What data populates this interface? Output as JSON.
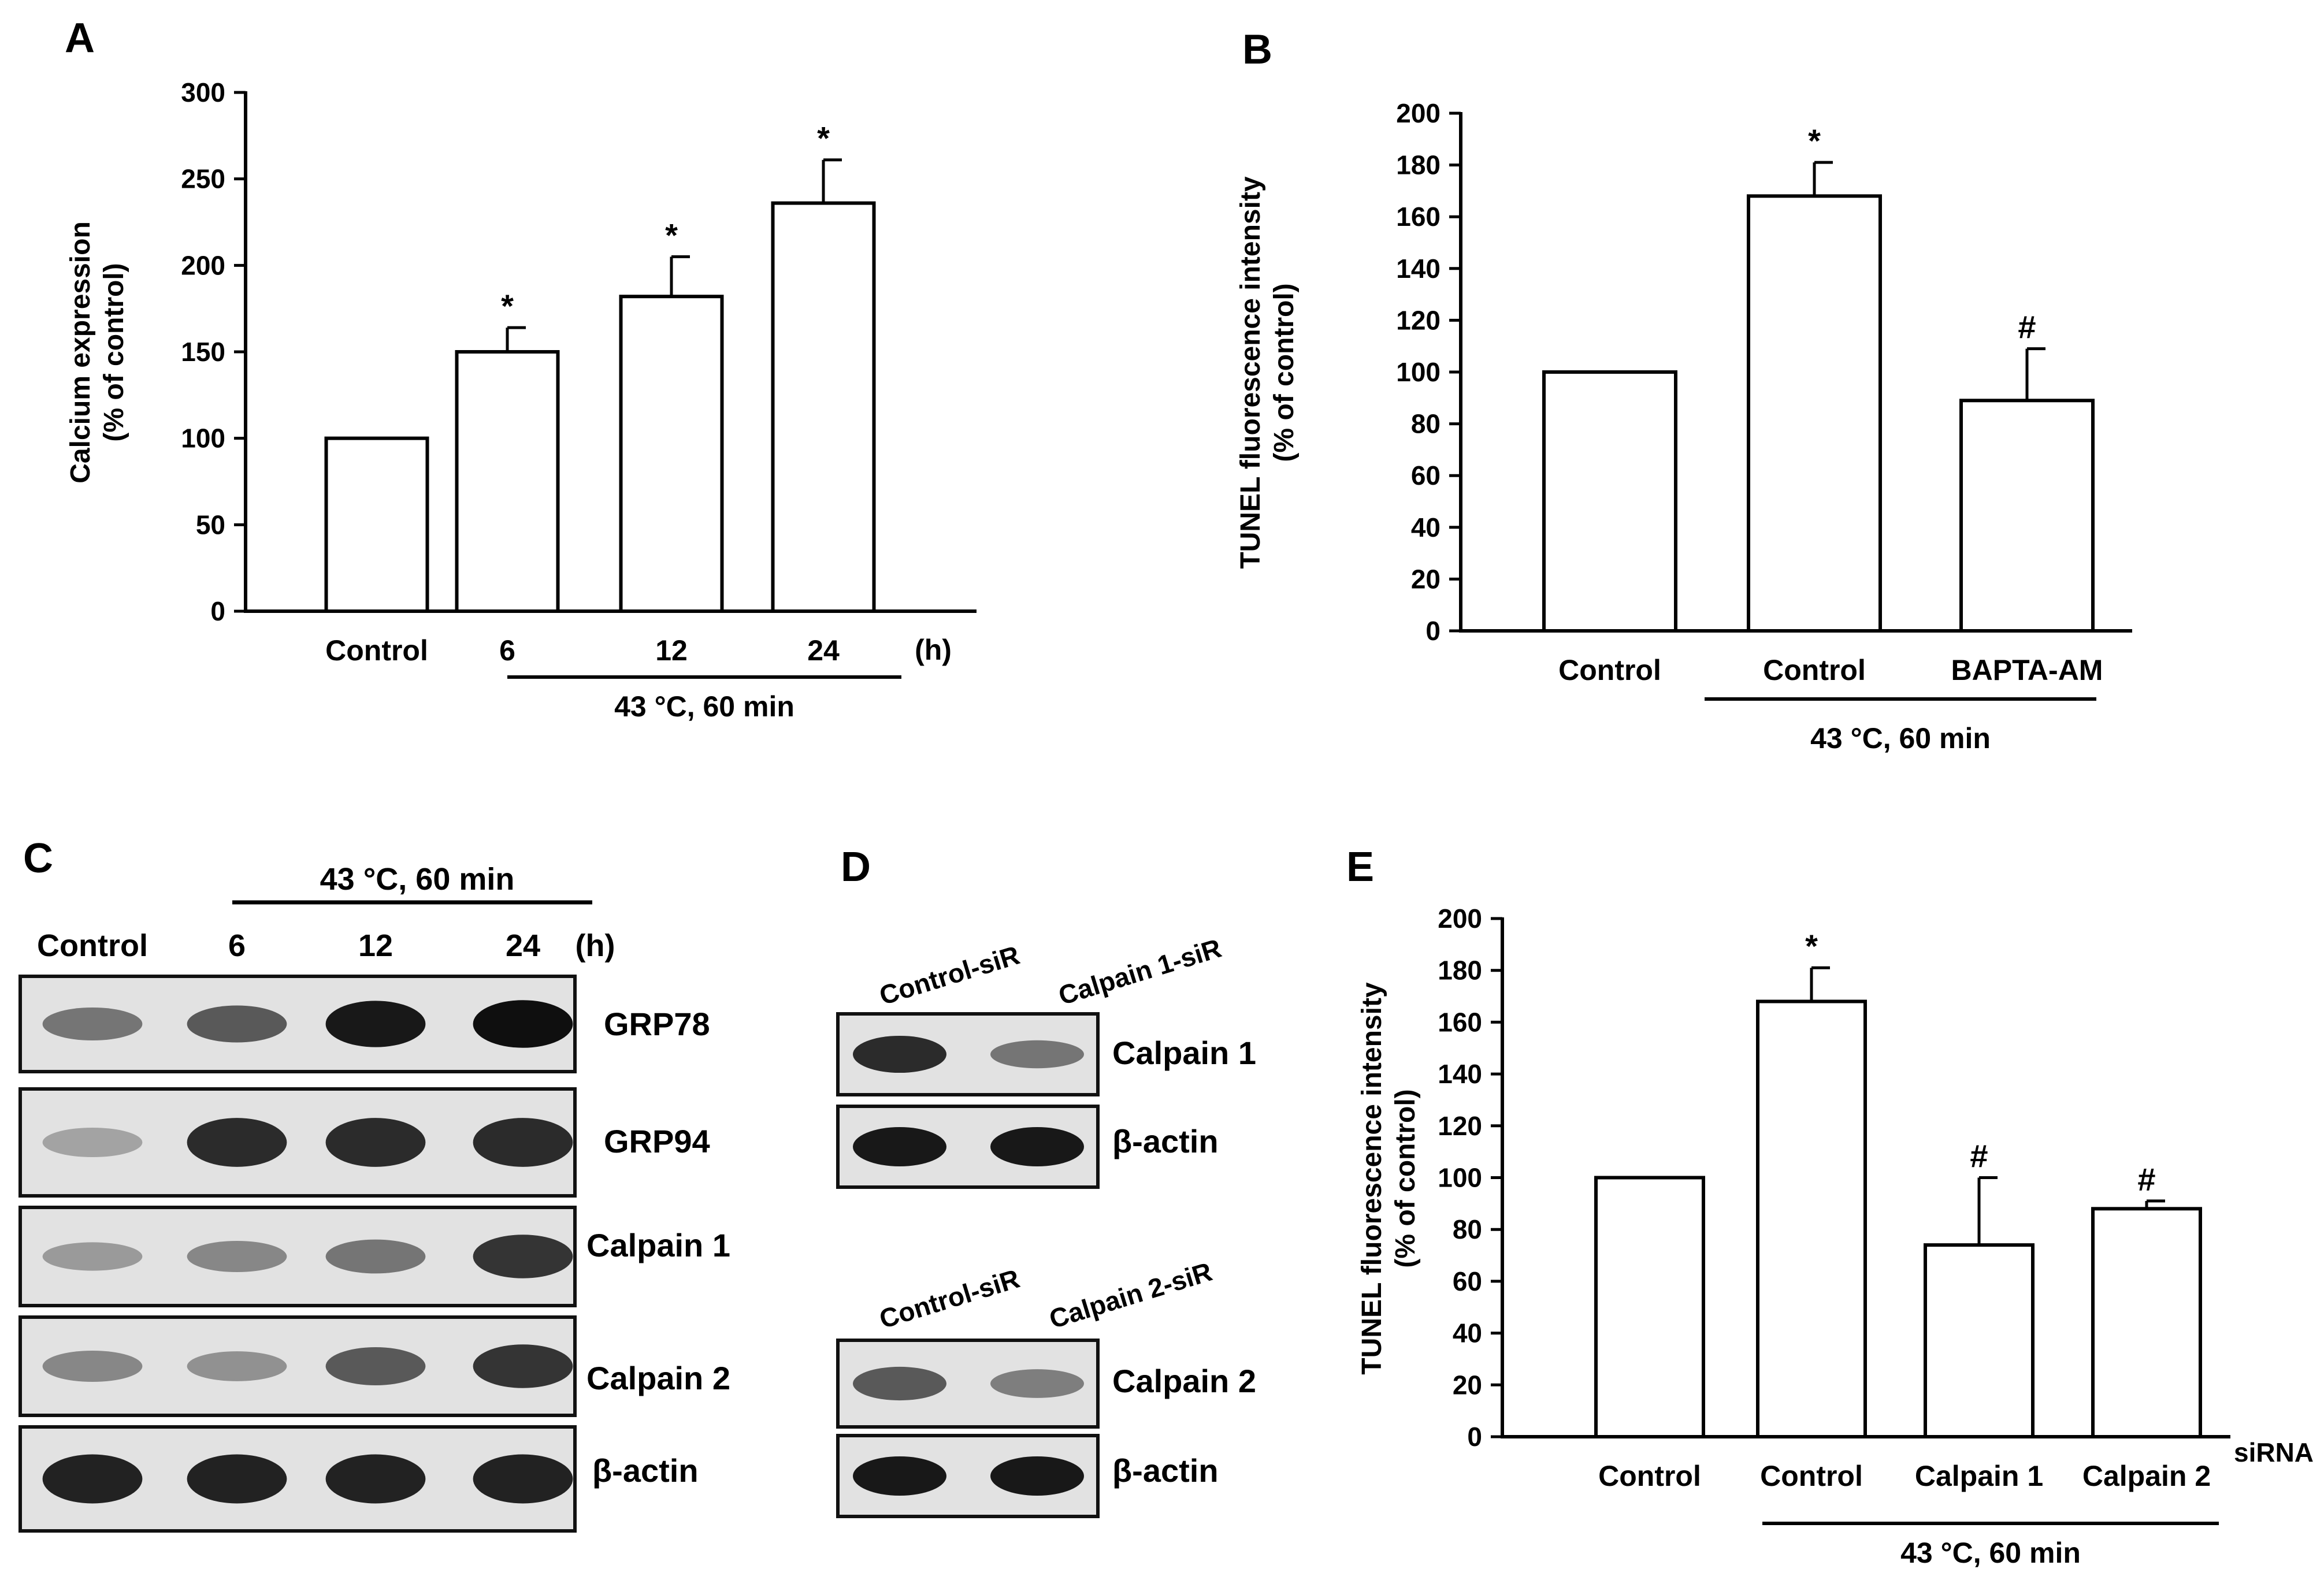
{
  "panel_labels": [
    "A",
    "B",
    "C",
    "D",
    "E"
  ],
  "chart_data": [
    {
      "panel": "A",
      "type": "bar",
      "categories": [
        "Control",
        "6",
        "12",
        "24"
      ],
      "values": [
        100,
        150,
        182,
        236
      ],
      "errors": [
        0,
        14,
        23,
        25
      ],
      "markers": [
        "",
        "*",
        "*",
        "*"
      ],
      "ylabel_line1": "Calcium expression",
      "ylabel_line2": "(% of control)",
      "ylim": [
        0,
        300
      ],
      "yticks": [
        0,
        50,
        100,
        150,
        200,
        250,
        300
      ],
      "unit_label": "(h)",
      "group_label": "43 °C, 60 min",
      "group_start": 1,
      "group_end": 3
    },
    {
      "panel": "B",
      "type": "bar",
      "categories": [
        "Control",
        "Control",
        "BAPTA-AM"
      ],
      "values": [
        100,
        168,
        89
      ],
      "errors": [
        0,
        13,
        20
      ],
      "markers": [
        "",
        "*",
        "#"
      ],
      "ylabel_line1": "TUNEL fluorescence intensity",
      "ylabel_line2": "(% of control)",
      "ylim": [
        0,
        200
      ],
      "yticks": [
        0,
        20,
        40,
        60,
        80,
        100,
        120,
        140,
        160,
        180,
        200
      ],
      "unit_label": "",
      "group_label": "43 °C, 60 min",
      "group_start": 1,
      "group_end": 2
    },
    {
      "panel": "E",
      "type": "bar",
      "categories": [
        "Control",
        "Control",
        "Calpain 1",
        "Calpain 2"
      ],
      "values": [
        100,
        168,
        74,
        88
      ],
      "errors": [
        0,
        13,
        26,
        3
      ],
      "markers": [
        "",
        "*",
        "#",
        "#"
      ],
      "ylabel_line1": "TUNEL fluorescence intensity",
      "ylabel_line2": "(% of control)",
      "ylim": [
        0,
        200
      ],
      "yticks": [
        0,
        20,
        40,
        60,
        80,
        100,
        120,
        140,
        160,
        180,
        200
      ],
      "unit_label": "siRNA",
      "group_label": "43 °C, 60 min",
      "group_start": 1,
      "group_end": 3
    }
  ],
  "blot_c": {
    "header": "43 °C, 60 min",
    "lanes": [
      "Control",
      "6",
      "12",
      "24"
    ],
    "unit": "(h)",
    "rows": [
      {
        "label": "GRP78",
        "intensities": [
          0.45,
          0.6,
          0.95,
          1.0
        ]
      },
      {
        "label": "GRP94",
        "intensities": [
          0.2,
          0.85,
          0.85,
          0.85
        ]
      },
      {
        "label": "Calpain 1",
        "intensities": [
          0.25,
          0.35,
          0.45,
          0.8
        ]
      },
      {
        "label": "Calpain 2",
        "intensities": [
          0.35,
          0.3,
          0.6,
          0.8
        ]
      },
      {
        "label": "β-actin",
        "intensities": [
          0.9,
          0.9,
          0.9,
          0.9
        ]
      }
    ]
  },
  "blot_d": {
    "top": {
      "lanes": [
        "Control-siR",
        "Calpain 1-siR"
      ],
      "rows": [
        {
          "label": "Calpain 1",
          "intensities": [
            0.85,
            0.45
          ]
        },
        {
          "label": "β-actin",
          "intensities": [
            0.95,
            0.95
          ]
        }
      ]
    },
    "bottom": {
      "lanes": [
        "Control-siR",
        "Calpain 2-siR"
      ],
      "rows": [
        {
          "label": "Calpain 2",
          "intensities": [
            0.6,
            0.4
          ]
        },
        {
          "label": "β-actin",
          "intensities": [
            0.95,
            0.95
          ]
        }
      ]
    }
  }
}
